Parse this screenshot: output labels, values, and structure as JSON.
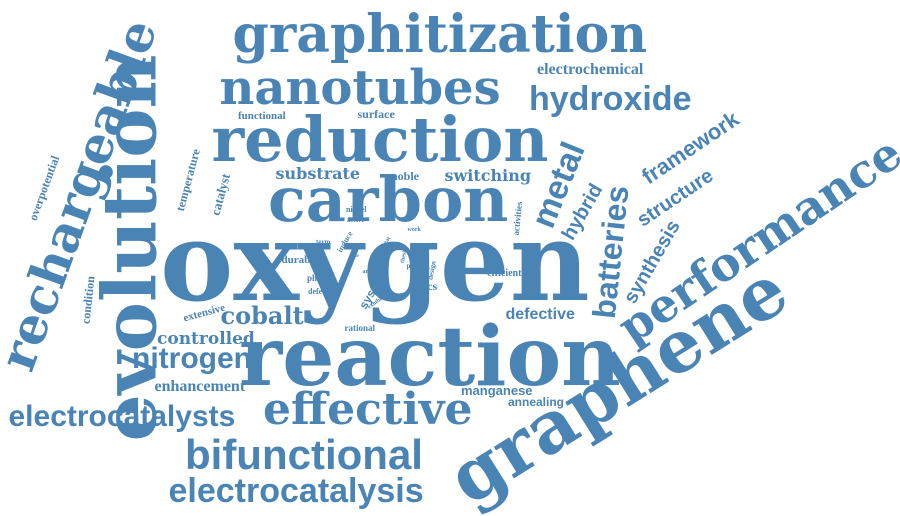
{
  "colors": {
    "word": "#4a84b5",
    "background": "#ffffff"
  },
  "words": {
    "oxygen": "oxygen",
    "reaction": "reaction",
    "evolution": "evolution",
    "carbon": "carbon",
    "reduction": "reduction",
    "graphene": "graphene",
    "graphitization": "graphitization",
    "rechargeable": "rechargeable",
    "performance": "performance",
    "nanotubes": "nanotubes",
    "effective": "effective",
    "bifunctional": "bifunctional",
    "electrocatalysis": "electrocatalysis",
    "electrocatalysts": "electrocatalysts",
    "hydroxide": "hydroxide",
    "nitrogen": "nitrogen",
    "cobalt": "cobalt",
    "metal": "metal",
    "batteries": "batteries",
    "framework": "framework",
    "structure": "structure",
    "synthesis": "synthesis",
    "hybrid": "hybrid",
    "substrate": "substrate",
    "switching": "switching",
    "controlled": "controlled",
    "enhancement": "enhancement",
    "defective": "defective",
    "manganese": "manganese",
    "annealing": "annealing",
    "electrochemical": "electrochemical",
    "overpotential": "overpotential",
    "temperature": "temperature",
    "catalyst": "catalyst",
    "functional": "functional",
    "surface": "surface",
    "noble": "noble",
    "condition": "condition",
    "extensive": "extensive",
    "system": "system",
    "scncs": "scncs",
    "efficient": "efficient",
    "activities": "activities",
    "durable": "durable",
    "phase": "phase",
    "defect": "defect",
    "rational": "rational",
    "nickel": "nickel",
    "active": "active",
    "induce": "induce",
    "term": "term",
    "work": "work",
    "design": "design",
    "pore": "pore",
    "thesis": "thesis",
    "exhibit": "exhibit",
    "area": "area",
    "cost": "cost",
    "heat": "heat",
    "large": "large",
    "site": "site"
  }
}
